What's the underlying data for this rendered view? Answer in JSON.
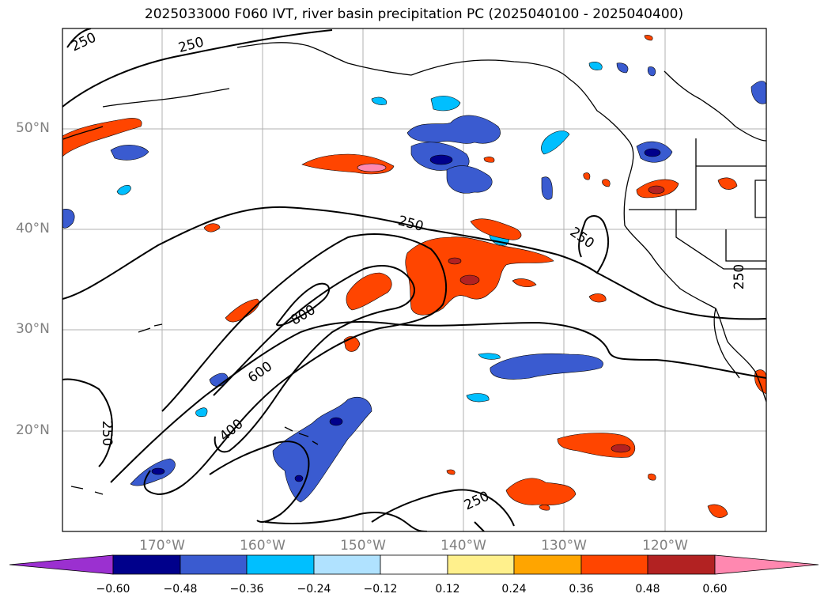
{
  "title": "2025033000 F060 IVT, river basin precipitation PC (2025040100 - 2025040400)",
  "lat_labels": [
    "50°N",
    "40°N",
    "30°N",
    "20°N"
  ],
  "lon_labels": [
    "170°W",
    "160°W",
    "150°W",
    "140°W",
    "130°W",
    "120°W"
  ],
  "ivt_contour_labels": [
    "250",
    "250",
    "250",
    "250",
    "250",
    "250",
    "800",
    "600",
    "400",
    "250"
  ],
  "colorbar": {
    "ticks": [
      "−0.60",
      "−0.48",
      "−0.36",
      "−0.24",
      "−0.12",
      "0.12",
      "0.24",
      "0.36",
      "0.48",
      "0.60"
    ],
    "colors": [
      "#9b30d0",
      "#00008b",
      "#3a5bd0",
      "#00bfff",
      "#b0e2ff",
      "#ffffff",
      "#fff08c",
      "#ffa500",
      "#ff4500",
      "#b22222",
      "#ff88b0"
    ]
  },
  "colors": {
    "grid": "#b0b0b0",
    "coast": "#000000",
    "contour": "#000000"
  }
}
